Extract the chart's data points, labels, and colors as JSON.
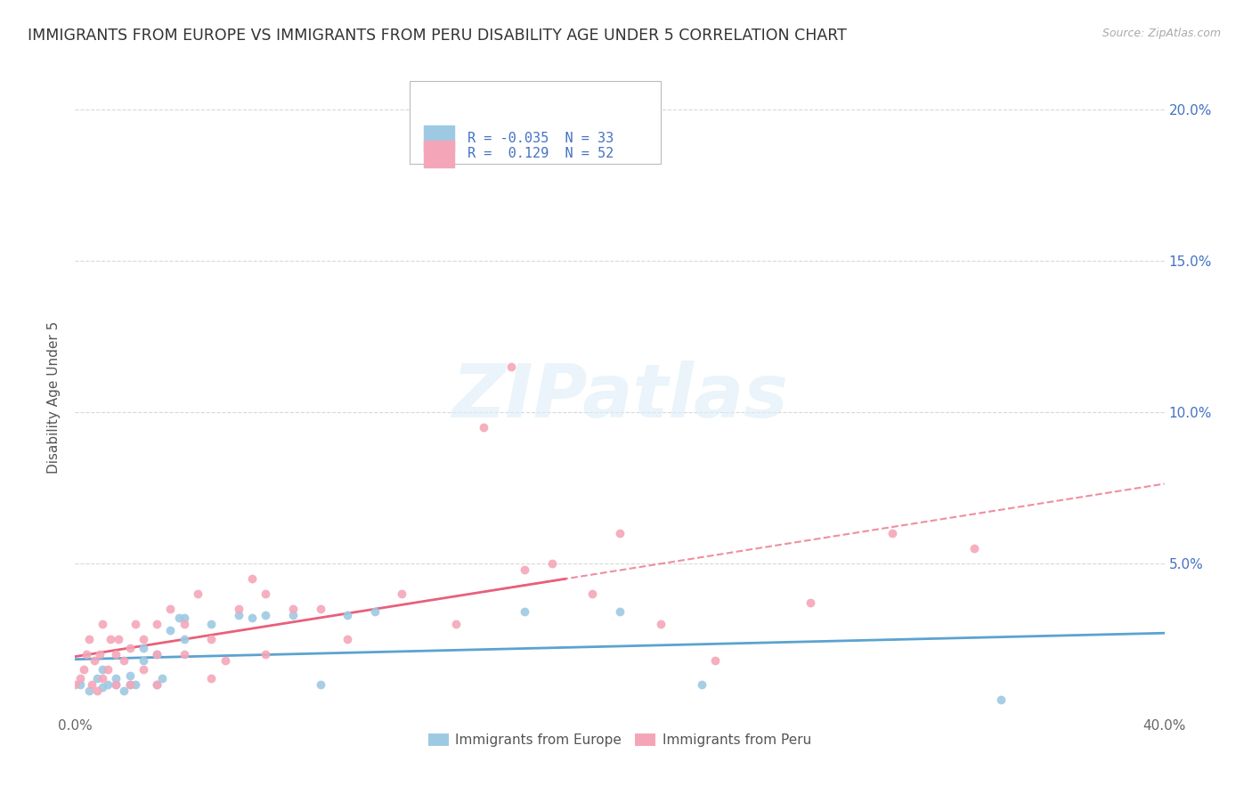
{
  "title": "IMMIGRANTS FROM EUROPE VS IMMIGRANTS FROM PERU DISABILITY AGE UNDER 5 CORRELATION CHART",
  "source": "Source: ZipAtlas.com",
  "ylabel": "Disability Age Under 5",
  "xmin": 0.0,
  "xmax": 0.4,
  "ymin": 0.0,
  "ymax": 0.21,
  "ytick_values": [
    0.0,
    0.05,
    0.1,
    0.15,
    0.2
  ],
  "xtick_values": [
    0.0,
    0.05,
    0.1,
    0.15,
    0.2,
    0.25,
    0.3,
    0.35,
    0.4
  ],
  "europe_color": "#9ec9e2",
  "peru_color": "#f4a6b8",
  "europe_line_color": "#5ba3d0",
  "peru_line_color": "#e8607a",
  "right_axis_color": "#4472c4",
  "legend_europe_label": "Immigrants from Europe",
  "legend_peru_label": "Immigrants from Peru",
  "R_europe": -0.035,
  "N_europe": 33,
  "R_peru": 0.129,
  "N_peru": 52,
  "watermark": "ZIPatlas",
  "europe_scatter_x": [
    0.002,
    0.005,
    0.008,
    0.01,
    0.01,
    0.012,
    0.015,
    0.015,
    0.018,
    0.02,
    0.02,
    0.022,
    0.025,
    0.025,
    0.03,
    0.03,
    0.032,
    0.035,
    0.038,
    0.04,
    0.04,
    0.05,
    0.06,
    0.065,
    0.07,
    0.08,
    0.09,
    0.1,
    0.11,
    0.165,
    0.2,
    0.23,
    0.34
  ],
  "europe_scatter_y": [
    0.01,
    0.008,
    0.012,
    0.009,
    0.015,
    0.01,
    0.01,
    0.012,
    0.008,
    0.01,
    0.013,
    0.01,
    0.018,
    0.022,
    0.01,
    0.02,
    0.012,
    0.028,
    0.032,
    0.025,
    0.032,
    0.03,
    0.033,
    0.032,
    0.033,
    0.033,
    0.01,
    0.033,
    0.034,
    0.034,
    0.034,
    0.01,
    0.005
  ],
  "peru_scatter_x": [
    0.0,
    0.002,
    0.003,
    0.004,
    0.005,
    0.006,
    0.007,
    0.008,
    0.009,
    0.01,
    0.01,
    0.012,
    0.013,
    0.015,
    0.015,
    0.016,
    0.018,
    0.02,
    0.02,
    0.022,
    0.025,
    0.025,
    0.03,
    0.03,
    0.03,
    0.035,
    0.04,
    0.04,
    0.045,
    0.05,
    0.05,
    0.055,
    0.06,
    0.065,
    0.07,
    0.07,
    0.08,
    0.09,
    0.1,
    0.12,
    0.14,
    0.15,
    0.16,
    0.165,
    0.175,
    0.19,
    0.2,
    0.215,
    0.235,
    0.27,
    0.3,
    0.33
  ],
  "peru_scatter_y": [
    0.01,
    0.012,
    0.015,
    0.02,
    0.025,
    0.01,
    0.018,
    0.008,
    0.02,
    0.012,
    0.03,
    0.015,
    0.025,
    0.01,
    0.02,
    0.025,
    0.018,
    0.01,
    0.022,
    0.03,
    0.015,
    0.025,
    0.01,
    0.02,
    0.03,
    0.035,
    0.02,
    0.03,
    0.04,
    0.012,
    0.025,
    0.018,
    0.035,
    0.045,
    0.02,
    0.04,
    0.035,
    0.035,
    0.025,
    0.04,
    0.03,
    0.095,
    0.115,
    0.048,
    0.05,
    0.04,
    0.06,
    0.03,
    0.018,
    0.037,
    0.06,
    0.055
  ],
  "background_color": "#ffffff",
  "grid_color": "#d8d8d8",
  "title_fontsize": 12.5,
  "label_fontsize": 11,
  "tick_fontsize": 11,
  "legend_fontsize": 11
}
